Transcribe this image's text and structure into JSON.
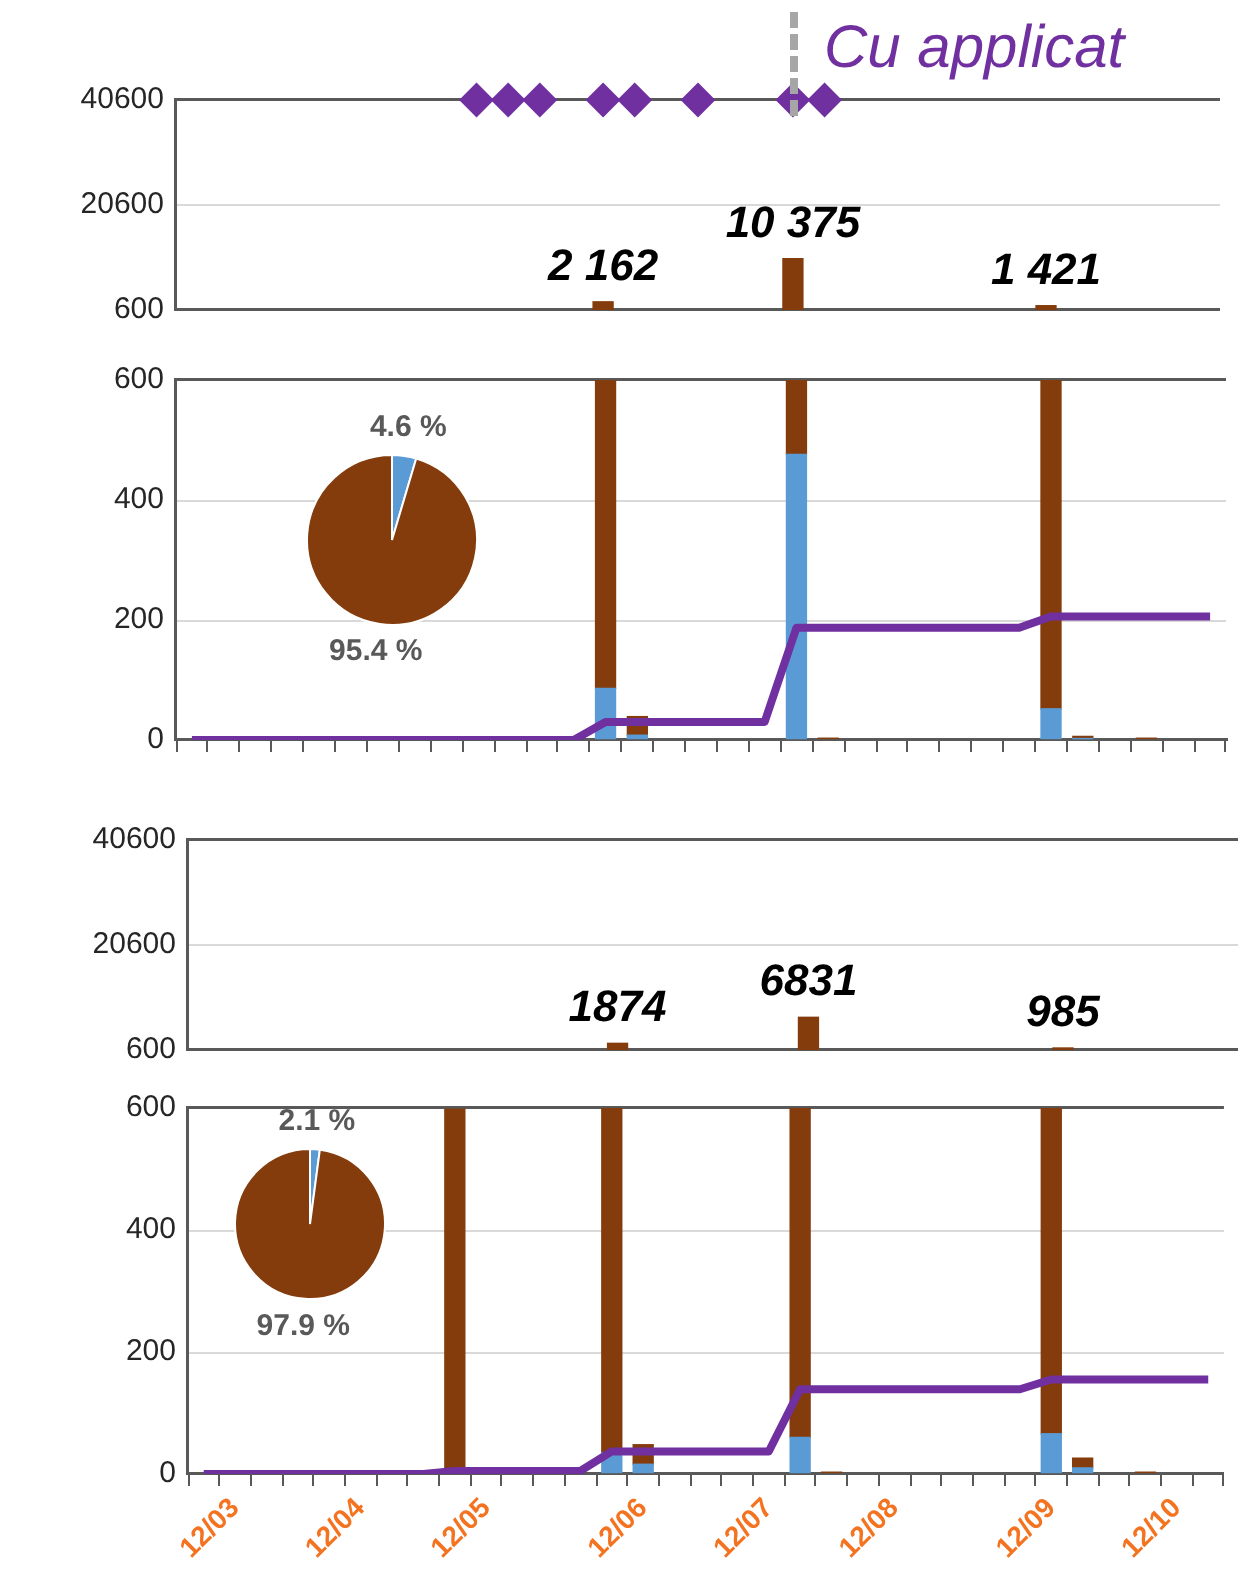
{
  "chart_data": [
    {
      "type": "bar",
      "categories": [
        null,
        null,
        null,
        null,
        null,
        null,
        null,
        null,
        null,
        null,
        null,
        null,
        null,
        null,
        null,
        null,
        null,
        null,
        null,
        null,
        null,
        null,
        null,
        null,
        null,
        null,
        null,
        null,
        null,
        null,
        null,
        null,
        null
      ],
      "ylim": [
        600,
        40600
      ],
      "yticks": [
        600,
        20600,
        40600
      ],
      "grid": "y",
      "tick_labels": "y",
      "series": [
        {
          "color": "#843c0c",
          "values": [
            null,
            null,
            null,
            null,
            null,
            null,
            null,
            null,
            null,
            null,
            null,
            null,
            null,
            2162,
            null,
            null,
            null,
            null,
            null,
            10375,
            null,
            null,
            null,
            null,
            null,
            null,
            null,
            1421,
            null,
            null,
            null,
            null,
            null
          ],
          "value_labels": [
            null,
            null,
            null,
            null,
            null,
            null,
            null,
            null,
            null,
            null,
            null,
            null,
            null,
            "2 162",
            null,
            null,
            null,
            null,
            null,
            "10 375",
            null,
            null,
            null,
            null,
            null,
            null,
            null,
            "1 421",
            null,
            null,
            null,
            null,
            null
          ]
        },
        {
          "type": "scatter",
          "marker": "diamond",
          "color": "#7030a0",
          "values": [
            null,
            null,
            null,
            null,
            null,
            null,
            null,
            null,
            null,
            40600,
            40600,
            40600,
            null,
            40600,
            40600,
            null,
            40600,
            null,
            null,
            40600,
            40600,
            null,
            null,
            null,
            null,
            null,
            null,
            null,
            null,
            null,
            null,
            null,
            null
          ]
        }
      ],
      "annotations": [
        "Cu applicat"
      ]
    },
    {
      "type": "bar",
      "stacked": true,
      "categories": [
        null,
        null,
        null,
        null,
        null,
        null,
        null,
        null,
        null,
        null,
        null,
        null,
        null,
        null,
        null,
        null,
        null,
        null,
        null,
        null,
        null,
        null,
        null,
        null,
        null,
        null,
        null,
        null,
        null,
        null,
        null,
        null,
        null
      ],
      "ylim": [
        0,
        600
      ],
      "yticks": [
        0,
        200,
        400,
        600
      ],
      "grid": "y",
      "tick_labels": "y",
      "series": [
        {
          "color": "#5b9bd5",
          "values": [
            null,
            null,
            null,
            null,
            null,
            null,
            null,
            null,
            null,
            null,
            null,
            null,
            null,
            86,
            8,
            null,
            null,
            null,
            null,
            476,
            null,
            null,
            null,
            null,
            null,
            null,
            null,
            52,
            2,
            null,
            null,
            null,
            null
          ]
        },
        {
          "color": "#843c0c",
          "values": [
            null,
            null,
            null,
            null,
            null,
            null,
            null,
            null,
            null,
            null,
            null,
            null,
            null,
            514,
            31,
            null,
            null,
            null,
            null,
            124,
            3,
            null,
            null,
            null,
            null,
            null,
            null,
            548,
            4,
            null,
            3,
            null,
            null
          ]
        },
        {
          "type": "line",
          "marker": "none",
          "color": "#7030a0",
          "values": [
            0,
            0,
            0,
            0,
            0,
            0,
            0,
            0,
            0,
            0,
            0,
            0,
            0,
            30,
            30,
            30,
            30,
            30,
            30,
            187,
            187,
            187,
            187,
            187,
            187,
            187,
            187,
            206,
            206,
            206,
            206,
            206,
            206
          ]
        }
      ]
    },
    {
      "type": "pie",
      "categories": [
        null,
        null
      ],
      "values": [
        4.6,
        95.4
      ],
      "colors": [
        "#5b9bd5",
        "#843c0c"
      ],
      "value_labels": [
        "4.6 %",
        "95.4 %"
      ]
    },
    {
      "type": "bar",
      "categories": [
        null,
        null,
        null,
        null,
        null,
        null,
        null,
        null,
        null,
        null,
        null,
        null,
        null,
        null,
        null,
        null,
        null,
        null,
        null,
        null,
        null,
        null,
        null,
        null,
        null,
        null,
        null,
        null,
        null,
        null,
        null,
        null,
        null
      ],
      "ylim": [
        600,
        40600
      ],
      "yticks": [
        600,
        20600,
        40600
      ],
      "grid": "y",
      "tick_labels": "y",
      "series": [
        {
          "color": "#843c0c",
          "values": [
            null,
            null,
            null,
            null,
            null,
            null,
            null,
            null,
            null,
            null,
            null,
            null,
            null,
            1874,
            null,
            null,
            null,
            null,
            null,
            6831,
            null,
            null,
            null,
            null,
            null,
            null,
            null,
            985,
            null,
            null,
            null,
            null,
            null
          ],
          "value_labels": [
            null,
            null,
            null,
            null,
            null,
            null,
            null,
            null,
            null,
            null,
            null,
            null,
            null,
            "1874",
            null,
            null,
            null,
            null,
            null,
            "6831",
            null,
            null,
            null,
            null,
            null,
            null,
            null,
            "985",
            null,
            null,
            null,
            null,
            null
          ]
        }
      ]
    },
    {
      "type": "bar",
      "stacked": true,
      "categories": [
        null,
        "12/03",
        null,
        null,
        null,
        "12/04",
        null,
        null,
        null,
        "12/05",
        null,
        null,
        null,
        null,
        "12/06",
        null,
        null,
        null,
        "12/07",
        null,
        null,
        null,
        "12/08",
        null,
        null,
        null,
        null,
        "12/09",
        null,
        null,
        null,
        "12/10",
        null
      ],
      "ylim": [
        0,
        600
      ],
      "yticks": [
        0,
        200,
        400,
        600
      ],
      "grid": "y",
      "series": [
        {
          "color": "#5b9bd5",
          "values": [
            null,
            null,
            null,
            null,
            null,
            null,
            null,
            null,
            null,
            null,
            null,
            null,
            null,
            35,
            16,
            null,
            null,
            null,
            null,
            60,
            null,
            null,
            null,
            null,
            null,
            null,
            null,
            66,
            10,
            null,
            null,
            null,
            null
          ]
        },
        {
          "color": "#843c0c",
          "values": [
            null,
            null,
            null,
            null,
            null,
            null,
            null,
            null,
            598,
            null,
            null,
            null,
            null,
            565,
            32,
            null,
            null,
            null,
            null,
            540,
            3,
            null,
            null,
            null,
            null,
            null,
            null,
            534,
            16,
            null,
            3,
            null,
            null
          ]
        },
        {
          "type": "line",
          "marker": "none",
          "color": "#7030a0",
          "values": [
            0,
            0,
            0,
            0,
            0,
            0,
            0,
            0,
            5,
            5,
            5,
            5,
            5,
            37,
            37,
            37,
            37,
            37,
            37,
            139,
            139,
            139,
            139,
            139,
            139,
            139,
            139,
            155,
            155,
            155,
            155,
            155,
            155
          ]
        }
      ]
    },
    {
      "type": "pie",
      "categories": [
        null,
        null
      ],
      "values": [
        2.1,
        97.9
      ],
      "colors": [
        "#5b9bd5",
        "#843c0c"
      ],
      "value_labels": [
        "2.1 %",
        "97.9 %"
      ]
    }
  ]
}
